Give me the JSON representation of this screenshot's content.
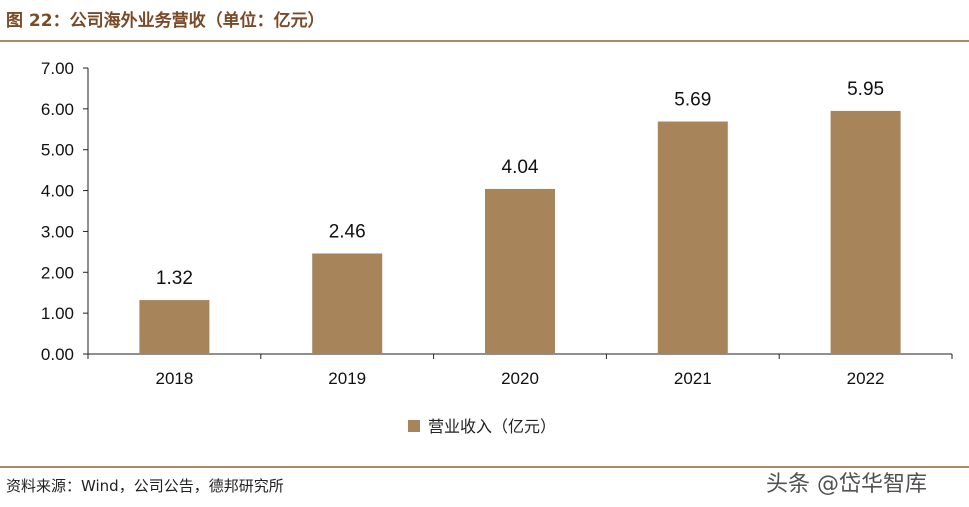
{
  "header": {
    "title": "图 22：公司海外业务营收（单位：亿元）"
  },
  "footer": {
    "source": "资料来源：Wind，公司公告，德邦研究所",
    "watermark": "头条 @岱华智库"
  },
  "colors": {
    "bar": "#a8845a",
    "rule": "#a98a6b",
    "title": "#7a4a26"
  },
  "chart_data": {
    "type": "bar",
    "title": "图 22：公司海外业务营收（单位：亿元）",
    "categories": [
      "2018",
      "2019",
      "2020",
      "2021",
      "2022"
    ],
    "series": [
      {
        "name": "营业收入（亿元）",
        "values": [
          1.32,
          2.46,
          4.04,
          5.69,
          5.95
        ]
      }
    ],
    "value_labels": [
      "1.32",
      "2.46",
      "4.04",
      "5.69",
      "5.95"
    ],
    "ylim": [
      0,
      7
    ],
    "yticks": [
      "0.00",
      "1.00",
      "2.00",
      "3.00",
      "4.00",
      "5.00",
      "6.00",
      "7.00"
    ],
    "grid": false,
    "legend": "bottom-center"
  }
}
